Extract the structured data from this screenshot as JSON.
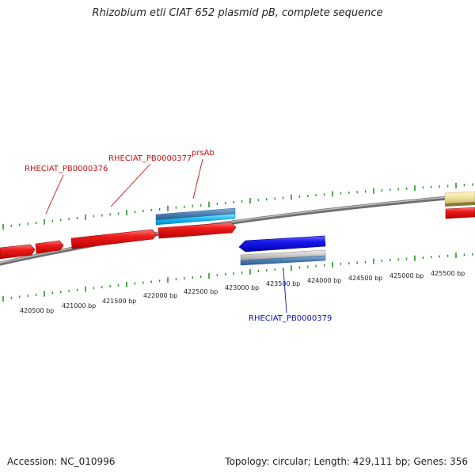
{
  "title": "Rhizobium etli CIAT 652 plasmid pB, complete sequence",
  "footer": {
    "accession": "Accession: NC_010996",
    "summary": "Topology: circular; Length: 429,111 bp; Genes: 356"
  },
  "colors": {
    "backbone": "#8a8a8a",
    "tick": "#2f8f2f",
    "gene_red": "#ee1c1c",
    "gene_blue": "#1a1aee",
    "label_red": "#cc1111",
    "label_blue": "#1111bb"
  },
  "scale_labels": [
    "420500 bp",
    "421000 bp",
    "421500 bp",
    "422000 bp",
    "422500 bp",
    "423000 bp",
    "423500 bp",
    "424000 bp",
    "424500 bp",
    "425000 bp",
    "425500 bp"
  ],
  "gene_labels": [
    {
      "text": "RHECIAT_PB0000376",
      "strand": "forward"
    },
    {
      "text": "RHECIAT_PB0000377",
      "strand": "forward"
    },
    {
      "text": "prsAb",
      "strand": "forward"
    },
    {
      "text": "RHECIAT_PB0000379",
      "strand": "reverse"
    }
  ]
}
